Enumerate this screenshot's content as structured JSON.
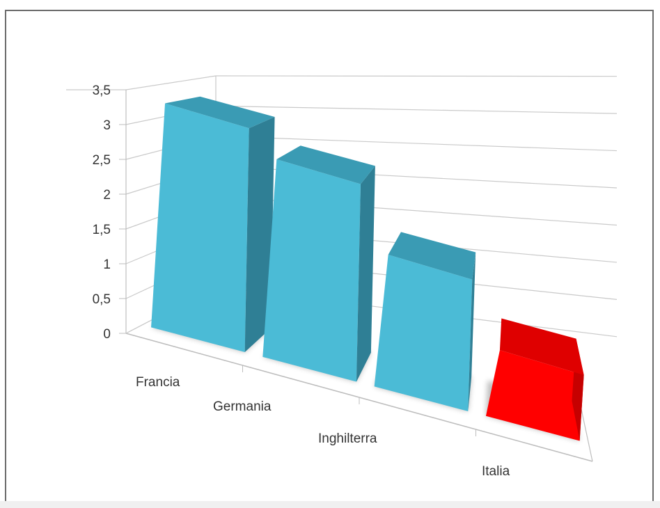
{
  "chart_data": {
    "type": "bar",
    "categories": [
      "Francia",
      "Germania",
      "Inghilterra",
      "Italia"
    ],
    "values": [
      3.4,
      3.0,
      2.0,
      1.0
    ],
    "title": "",
    "xlabel": "",
    "ylabel": "",
    "ylim": [
      0,
      3.5
    ],
    "y_ticks": [
      "0",
      "0,5",
      "1",
      "1,5",
      "2",
      "2,5",
      "3",
      "3,5"
    ],
    "grid": true,
    "legend": "none",
    "colors": {
      "default_front": "#4bbbd6",
      "default_side": "#2f7f95",
      "default_top": "#3a9bb4",
      "highlight_front": "#ff0000",
      "highlight_side": "#c60000",
      "highlight_top": "#df0000"
    },
    "highlight_category": "Italia"
  }
}
